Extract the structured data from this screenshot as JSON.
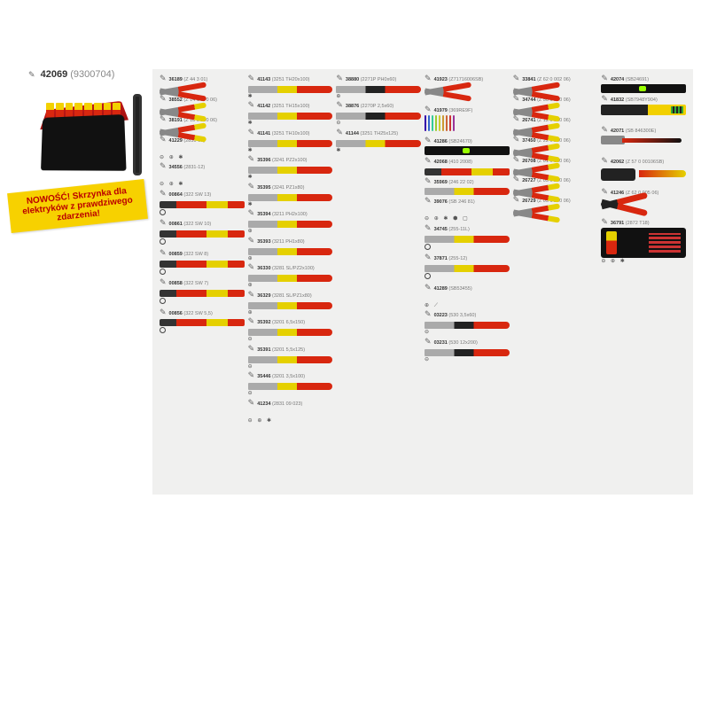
{
  "header": {
    "sku": "42069",
    "alt": "(9300704)"
  },
  "promo": "NOWOŚĆ! Skrzynka dla elektryków z prawdziwego zdarzenia!",
  "cols": [
    [
      {
        "s": "36189",
        "a": "(Z 44 3 01)",
        "t": "plier",
        "sym": ""
      },
      {
        "s": "38552",
        "a": "(Z 14 1 170 06)",
        "t": "plier-yel",
        "sym": ""
      },
      {
        "s": "38191",
        "a": "(Z 18 0 200 06)",
        "t": "plier-yel",
        "sym": ""
      },
      {
        "s": "41229",
        "a": "(2831-01)",
        "t": "sym",
        "sym": "⊖ ⊕ ✱"
      },
      {
        "s": "34556",
        "a": "(2831-12)",
        "t": "sym",
        "sym": "⊖ ⊕ ✱"
      },
      {
        "s": "00864",
        "a": "(322 SW 13)",
        "t": "socket",
        "sym": "○"
      },
      {
        "s": "00861",
        "a": "(322 SW 10)",
        "t": "socket",
        "sym": "○"
      },
      {
        "s": "00859",
        "a": "(322 SW 8)",
        "t": "socket",
        "sym": "○"
      },
      {
        "s": "00858",
        "a": "(322 SW 7)",
        "t": "socket",
        "sym": "○"
      },
      {
        "s": "00856",
        "a": "(322 SW 5,5)",
        "t": "socket",
        "sym": "○"
      }
    ],
    [
      {
        "s": "41143",
        "a": "(3251 TH20x100)",
        "t": "driver",
        "sym": "✱"
      },
      {
        "s": "41142",
        "a": "(3251 TH15x100)",
        "t": "driver",
        "sym": "✱"
      },
      {
        "s": "41141",
        "a": "(3251 TH10x100)",
        "t": "driver",
        "sym": "✱"
      },
      {
        "s": "35396",
        "a": "(3241 PZ2x100)",
        "t": "driver",
        "sym": "✱"
      },
      {
        "s": "35395",
        "a": "(3241 PZ1x80)",
        "t": "driver",
        "sym": "✱"
      },
      {
        "s": "35394",
        "a": "(3211 PH2x100)",
        "t": "driver",
        "sym": "⊕"
      },
      {
        "s": "35393",
        "a": "(3211 PH1x80)",
        "t": "driver",
        "sym": "⊕"
      },
      {
        "s": "36330",
        "a": "(3281 SL/PZ2x100)",
        "t": "driver",
        "sym": "⊕"
      },
      {
        "s": "36329",
        "a": "(3281 SL/PZ1x80)",
        "t": "driver",
        "sym": "⊕"
      },
      {
        "s": "35392",
        "a": "(3201 6,5x150)",
        "t": "driver",
        "sym": "⊖"
      },
      {
        "s": "35391",
        "a": "(3201 5,5x125)",
        "t": "driver",
        "sym": "⊖"
      },
      {
        "s": "35446",
        "a": "(3201 3,5x100)",
        "t": "driver",
        "sym": "⊖"
      },
      {
        "s": "41234",
        "a": "(2831 09 023)",
        "t": "sym",
        "sym": "⊖ ⊕ ✱"
      }
    ],
    [
      {
        "s": "38880",
        "a": "(2271P PH0x60)",
        "t": "driver-blk",
        "sym": "⊕"
      },
      {
        "s": "38876",
        "a": "(2270P 2,5x60)",
        "t": "driver-blk",
        "sym": "⊖"
      },
      {
        "s": "41144",
        "a": "(3251 TH25x125)",
        "t": "driver",
        "sym": "✱"
      }
    ],
    [
      {
        "s": "41923",
        "a": "(Z71716006SB)",
        "t": "plier",
        "h": "tall",
        "sym": ""
      },
      {
        "s": "41979",
        "a": "(369RE9F)",
        "t": "keys",
        "h": "tall",
        "sym": "",
        "keys": [
          "#30a",
          "#36c",
          "#3c9",
          "#9c3",
          "#cc3",
          "#c93",
          "#c63",
          "#c33",
          "#939"
        ]
      },
      {
        "s": "41286",
        "a": "(SB24670)",
        "t": "level",
        "sym": ""
      },
      {
        "s": "42068",
        "a": "(410 2008)",
        "t": "socket",
        "sym": ""
      },
      {
        "s": "35969",
        "a": "(246 22 02)",
        "t": "driver",
        "sym": ""
      },
      {
        "s": "39076",
        "a": "(SB 246 81)",
        "t": "sym",
        "sym": "⊖ ⊕ ✱ ⬢ ▢"
      },
      {
        "s": "34745",
        "a": "(255-11L)",
        "t": "driver",
        "sym": "○"
      },
      {
        "s": "37871",
        "a": "(255-12)",
        "t": "driver",
        "sym": "○"
      },
      {
        "s": "41289",
        "a": "(SB53455)",
        "t": "sym",
        "sym": "⊕ ⟋"
      },
      {
        "s": "03223",
        "a": "(530 3,5x60)",
        "t": "driver-blk",
        "sym": "⊖"
      },
      {
        "s": "03231",
        "a": "(530 12x200)",
        "t": "driver-blk",
        "sym": "⊖"
      }
    ],
    [
      {
        "s": "33841",
        "a": "(Z 62 0 002 06)",
        "t": "plier",
        "sym": ""
      },
      {
        "s": "34744",
        "a": "(Z 50 1 200 06)",
        "t": "plier-yel",
        "sym": ""
      },
      {
        "s": "26741",
        "a": "(Z 12 0 160 06)",
        "t": "plier-yel",
        "sym": ""
      },
      {
        "s": "37450",
        "a": "(Z 22 0 250 06)",
        "t": "plier-yel",
        "sym": ""
      },
      {
        "s": "26708",
        "a": "(Z 01 0 180 06)",
        "t": "plier-yel",
        "sym": ""
      },
      {
        "s": "26727",
        "a": "(Z 05 0 200 06)",
        "t": "plier-yel",
        "sym": ""
      },
      {
        "s": "26729",
        "a": "(Z 05 1 200 06)",
        "t": "plier-yel",
        "sym": ""
      }
    ],
    [
      {
        "s": "42074",
        "a": "(SB24691)",
        "t": "level",
        "sym": ""
      },
      {
        "s": "41832",
        "a": "(SB7948Y904)",
        "t": "tester",
        "h": "tall",
        "sym": ""
      },
      {
        "s": "42071",
        "a": "(SB 846300E)",
        "t": "hammer",
        "h": "tall",
        "sym": ""
      },
      {
        "s": "42062",
        "a": "(Z 57 0 00106SB)",
        "t": "strip",
        "h": "tall",
        "sym": ""
      },
      {
        "s": "41246",
        "a": "(Z 62 0 005 06)",
        "t": "crimp",
        "h": "tall",
        "sym": ""
      },
      {
        "s": "36791",
        "a": "(2872 T18)",
        "t": "box",
        "h": "xtall",
        "sym": "⊖ ⊕ ✱"
      }
    ]
  ]
}
